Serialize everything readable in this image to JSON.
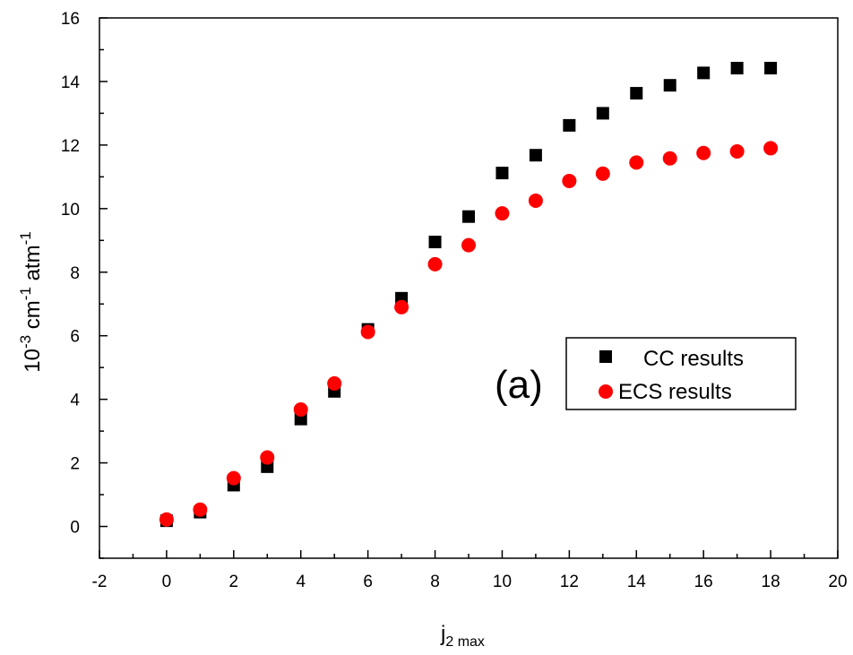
{
  "chart_data": {
    "type": "scatter",
    "xlabel": {
      "main": "j",
      "sub": "2 max"
    },
    "ylabel": {
      "base": "10",
      "exp1": "-3",
      "unit1": " cm",
      "exp2": "-1",
      "unit2": " atm",
      "exp3": "-1"
    },
    "annotation": "(a)",
    "xlim": [
      -2,
      20
    ],
    "ylim": [
      -1,
      16
    ],
    "xticks": [
      "-2",
      "0",
      "2",
      "4",
      "6",
      "8",
      "10",
      "12",
      "14",
      "16",
      "18",
      "20"
    ],
    "yticks": [
      "0",
      "2",
      "4",
      "6",
      "8",
      "10",
      "12",
      "14",
      "16"
    ],
    "legend_position": "right-middle",
    "series": [
      {
        "name": "CC results",
        "marker": "square",
        "color": "#000000",
        "x": [
          0,
          1,
          2,
          3,
          4,
          5,
          6,
          7,
          8,
          9,
          10,
          11,
          12,
          13,
          14,
          15,
          16,
          17,
          18
        ],
        "y": [
          0.18,
          0.45,
          1.3,
          1.88,
          3.38,
          4.25,
          6.2,
          7.18,
          8.95,
          9.75,
          11.12,
          11.68,
          12.62,
          13.0,
          13.63,
          13.88,
          14.27,
          14.42,
          14.42
        ]
      },
      {
        "name": "ECS results",
        "marker": "circle",
        "color": "#ff0000",
        "x": [
          0,
          1,
          2,
          3,
          4,
          5,
          6,
          7,
          8,
          9,
          10,
          11,
          12,
          13,
          14,
          15,
          16,
          17,
          18
        ],
        "y": [
          0.22,
          0.53,
          1.52,
          2.17,
          3.68,
          4.5,
          6.12,
          6.9,
          8.25,
          8.85,
          9.85,
          10.25,
          10.87,
          11.1,
          11.45,
          11.58,
          11.75,
          11.8,
          11.9
        ]
      }
    ]
  }
}
